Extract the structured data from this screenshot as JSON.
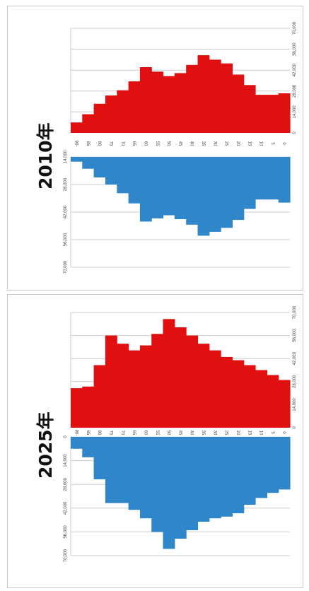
{
  "colors": {
    "male": "#e01010",
    "female": "#2f86c8",
    "grid": "#cccccc",
    "frame": "#c8c8c8"
  },
  "chart_data": [
    {
      "type": "bar",
      "title": "2010年",
      "categories": [
        "90-",
        "85",
        "80",
        "75",
        "70",
        "65",
        "60",
        "55",
        "50",
        "45",
        "40",
        "35",
        "30",
        "25",
        "20",
        "15",
        "10",
        "5",
        "0"
      ],
      "category_tick_labels": [
        "90-",
        "85",
        "80",
        "75",
        "70",
        "65",
        "60",
        "55",
        "50",
        "45",
        "40",
        "35",
        "30",
        "25",
        "20",
        "15",
        "10",
        "5",
        "0"
      ],
      "series": [
        {
          "values": [
            7000,
            12500,
            19500,
            25000,
            28500,
            34500,
            44000,
            41000,
            38000,
            40000,
            45500,
            52000,
            49000,
            46500,
            39000,
            32000,
            25500,
            25500,
            26500
          ]
        },
        {
          "values": [
            3000,
            7500,
            13000,
            17500,
            23000,
            29500,
            41000,
            39000,
            37000,
            39500,
            43000,
            50000,
            47500,
            45000,
            40000,
            33000,
            27000,
            27000,
            29000
          ]
        }
      ],
      "value_ticks_top": [
        "0",
        "14,000",
        "28,000",
        "42,000",
        "56,000",
        "70,000"
      ],
      "value_ticks_bottom": [
        "70,000",
        "56,000",
        "42,000",
        "28,000",
        "14,000"
      ],
      "xlim": [
        0,
        70000
      ]
    },
    {
      "type": "bar",
      "title": "2025年",
      "categories": [
        "90-",
        "85",
        "80",
        "75",
        "70",
        "65",
        "60",
        "55",
        "50",
        "45",
        "40",
        "35",
        "30",
        "25",
        "20",
        "15",
        "10",
        "5",
        "0"
      ],
      "category_tick_labels": [
        "90-",
        "85",
        "80",
        "75",
        "70",
        "65",
        "60",
        "55",
        "50",
        "45",
        "40",
        "35",
        "30",
        "25",
        "20",
        "15",
        "10",
        "5",
        "0"
      ],
      "series": [
        {
          "values": [
            24000,
            25000,
            38000,
            56000,
            51000,
            47000,
            50000,
            57000,
            66000,
            61000,
            56000,
            51000,
            47000,
            43000,
            41000,
            38000,
            35000,
            32000,
            29000
          ]
        },
        {
          "values": [
            7000,
            12000,
            25000,
            39000,
            39000,
            43000,
            48000,
            56000,
            66000,
            60000,
            55000,
            50000,
            48000,
            47000,
            45000,
            40000,
            36000,
            33000,
            31000
          ]
        }
      ],
      "value_ticks_top": [
        "0",
        "14,000",
        "28,000",
        "42,000",
        "56,000",
        "70,000"
      ],
      "value_ticks_bottom": [
        "70,000",
        "56,000",
        "42,000",
        "28,000",
        "14,000",
        "0"
      ],
      "xlim": [
        0,
        70000
      ]
    }
  ]
}
